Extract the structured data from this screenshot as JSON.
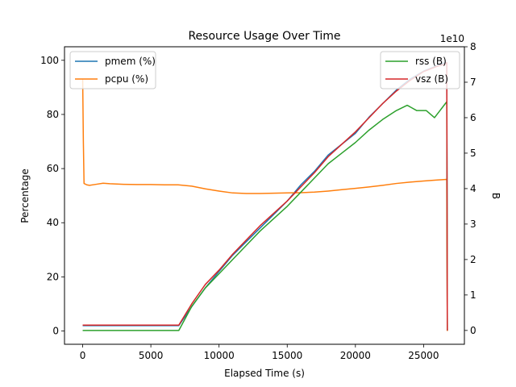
{
  "chart_data": {
    "type": "line",
    "title": "Resource Usage Over Time",
    "xlabel": "Elapsed Time (s)",
    "ylabel": "Percentage",
    "y2label": "B",
    "y2_offset_text": "1e10",
    "xlim": [
      -1333,
      27993
    ],
    "ylim": [
      -4.9,
      105
    ],
    "y2lim": [
      -0.39,
      8.0
    ],
    "x_ticks": [
      0,
      5000,
      10000,
      15000,
      20000,
      25000
    ],
    "x_tick_labels": [
      "0",
      "5000",
      "10000",
      "15000",
      "20000",
      "25000"
    ],
    "y_ticks": [
      0,
      20,
      40,
      60,
      80,
      100
    ],
    "y_tick_labels": [
      "0",
      "20",
      "40",
      "60",
      "80",
      "100"
    ],
    "y2_ticks": [
      0,
      1,
      2,
      3,
      4,
      5,
      6,
      7,
      8
    ],
    "y2_tick_labels": [
      "0",
      "1",
      "2",
      "3",
      "4",
      "5",
      "6",
      "7",
      "8"
    ],
    "grid": false,
    "legend_left": {
      "placement": "upper-left",
      "entries": [
        "pmem (%)",
        "pcpu (%)"
      ]
    },
    "legend_right": {
      "placement": "upper-right",
      "entries": [
        "rss (B)",
        "vsz (B)"
      ]
    },
    "series": [
      {
        "name": "pmem (%)",
        "axis": "left",
        "color": "#1f77b4",
        "x": [
          0,
          7050,
          8000,
          9000,
          10000,
          11000,
          12000,
          13000,
          14000,
          15000,
          16000,
          17000,
          18000,
          19000,
          20000,
          21000,
          22000,
          23000,
          24000,
          25000,
          26000,
          26500,
          26700,
          26720,
          26740
        ],
        "y": [
          2,
          2,
          9,
          16,
          22,
          28,
          33,
          38,
          43,
          48,
          54,
          59,
          65,
          69,
          73,
          79,
          84,
          89,
          93,
          96,
          98,
          99,
          99,
          50,
          0
        ]
      },
      {
        "name": "pcpu (%)",
        "axis": "left",
        "color": "#ff7f0e",
        "x": [
          0,
          50,
          100,
          300,
          500,
          1000,
          1500,
          2000,
          2500,
          3000,
          4000,
          5000,
          6000,
          7000,
          8000,
          9000,
          10000,
          11000,
          12000,
          13000,
          14000,
          15000,
          16000,
          17000,
          18000,
          19000,
          20000,
          21000,
          22000,
          23000,
          24000,
          25000,
          26000,
          26700,
          26720,
          26740
        ],
        "y": [
          93,
          70,
          54.5,
          54,
          53.8,
          54.2,
          54.6,
          54.4,
          54.3,
          54.2,
          54.1,
          54.1,
          54,
          54,
          53.5,
          52.5,
          51.7,
          51,
          50.8,
          50.8,
          50.9,
          51,
          51.1,
          51.3,
          51.7,
          52.2,
          52.7,
          53.2,
          53.8,
          54.5,
          55,
          55.4,
          55.8,
          56,
          30,
          0
        ]
      },
      {
        "name": "rss (B)",
        "axis": "right",
        "color": "#2ca02c",
        "x": [
          0,
          7050,
          8000,
          9000,
          10000,
          11000,
          12000,
          13000,
          14000,
          15000,
          16000,
          17000,
          18000,
          19000,
          20000,
          21000,
          22000,
          23000,
          23800,
          24500,
          25200,
          25800,
          26200,
          26600,
          26700,
          26720,
          26740
        ],
        "y": [
          0.0,
          0.0,
          0.68,
          1.2,
          1.6,
          2.0,
          2.4,
          2.8,
          3.15,
          3.5,
          3.9,
          4.3,
          4.7,
          5.0,
          5.3,
          5.65,
          5.95,
          6.2,
          6.35,
          6.2,
          6.2,
          6.0,
          6.2,
          6.4,
          6.45,
          3.5,
          0
        ]
      },
      {
        "name": "vsz (B)",
        "axis": "right",
        "color": "#d62728",
        "x": [
          0,
          7050,
          8000,
          9000,
          10000,
          11000,
          12000,
          13000,
          14000,
          15000,
          16000,
          17000,
          18000,
          19000,
          20000,
          21000,
          22000,
          23000,
          24000,
          25000,
          26000,
          26500,
          26700,
          26720,
          26740
        ],
        "y": [
          0.15,
          0.15,
          0.75,
          1.3,
          1.7,
          2.15,
          2.55,
          2.95,
          3.3,
          3.65,
          4.05,
          4.45,
          4.9,
          5.25,
          5.6,
          6.0,
          6.4,
          6.75,
          7.05,
          7.3,
          7.45,
          7.5,
          7.55,
          4.0,
          0
        ]
      }
    ]
  }
}
